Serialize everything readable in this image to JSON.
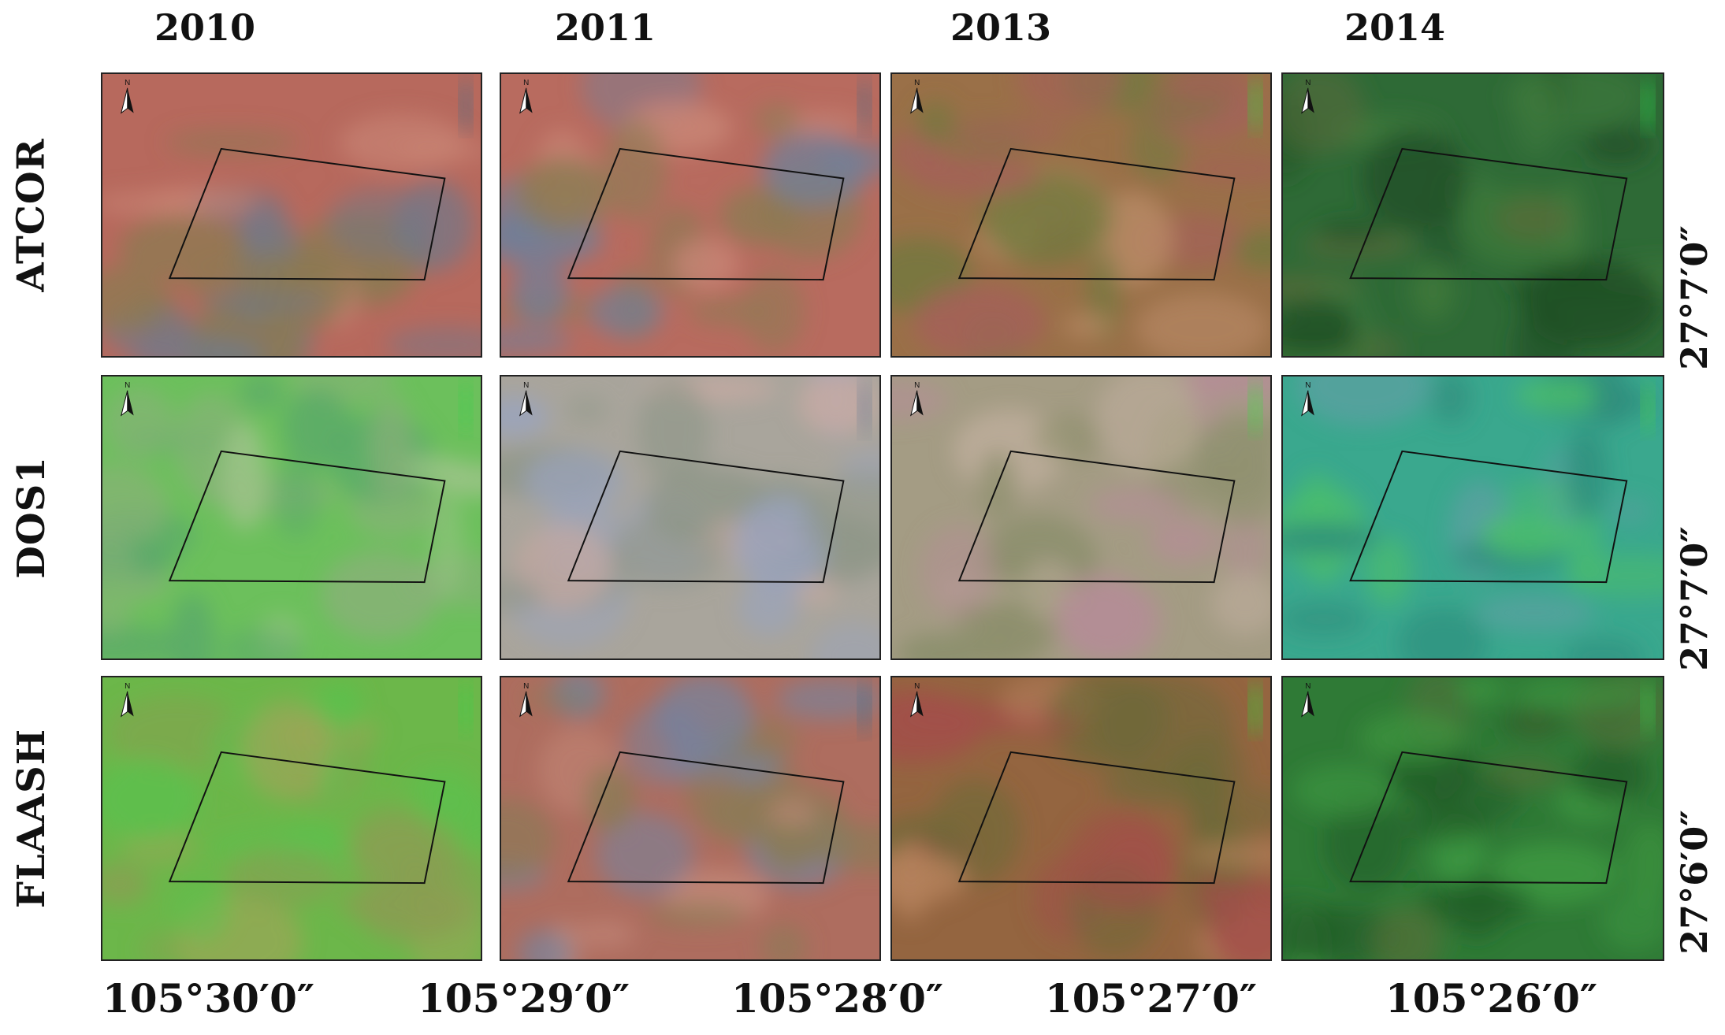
{
  "figure": {
    "years": [
      "2010",
      "2011",
      "2013",
      "2014"
    ],
    "methods": [
      "ATCOR",
      "DOS1",
      "FLAASH"
    ],
    "latitude_labels": [
      "27°7′0″",
      "27°7′0″",
      "27°6′0″"
    ],
    "longitude_labels": [
      "105°30′0″",
      "105°29′0″",
      "105°28′0″",
      "105°27′0″",
      "105°26′0″"
    ],
    "north_arrow_letter": "N",
    "north_arrow_icon": "north-arrow-icon"
  },
  "panels": [
    {
      "method": "ATCOR",
      "year": "2010",
      "palette": {
        "base": "#b7695d",
        "a": "#8c7a52",
        "b": "#6e7a8c",
        "c": "#c98676",
        "accent": "#4a6e88"
      }
    },
    {
      "method": "ATCOR",
      "year": "2011",
      "palette": {
        "base": "#b86b5f",
        "a": "#8e7b54",
        "b": "#70809a",
        "c": "#c98676",
        "accent": "#4b6c86"
      }
    },
    {
      "method": "ATCOR",
      "year": "2013",
      "palette": {
        "base": "#9a7048",
        "a": "#6f7a3e",
        "b": "#a5605a",
        "c": "#b98a66",
        "accent": "#2fdc38"
      }
    },
    {
      "method": "ATCOR",
      "year": "2014",
      "palette": {
        "base": "#2e6a36",
        "a": "#1f5026",
        "b": "#3f7b3c",
        "c": "#5a6a3a",
        "accent": "#2bd04a"
      }
    },
    {
      "method": "DOS1",
      "year": "2010",
      "palette": {
        "base": "#6cc05c",
        "a": "#8bb07a",
        "b": "#5aa86a",
        "c": "#9fc48a",
        "accent": "#3ccf4c"
      }
    },
    {
      "method": "DOS1",
      "year": "2011",
      "palette": {
        "base": "#a9a59c",
        "a": "#8e9688",
        "b": "#9aa3bd",
        "c": "#c7aaa2",
        "accent": "#627a94"
      }
    },
    {
      "method": "DOS1",
      "year": "2013",
      "palette": {
        "base": "#a49c84",
        "a": "#8c8f6c",
        "b": "#b48e96",
        "c": "#c2b0a0",
        "accent": "#37e040"
      }
    },
    {
      "method": "DOS1",
      "year": "2014",
      "palette": {
        "base": "#3aa88e",
        "a": "#2f8c7c",
        "b": "#4cbf6a",
        "c": "#5aa0a0",
        "accent": "#49d04c"
      }
    },
    {
      "method": "FLAASH",
      "year": "2010",
      "palette": {
        "base": "#6cb74a",
        "a": "#8a9e52",
        "b": "#59c24e",
        "c": "#a0a458",
        "accent": "#3ed04a"
      }
    },
    {
      "method": "FLAASH",
      "year": "2011",
      "palette": {
        "base": "#ae6d5f",
        "a": "#8a7b56",
        "b": "#7484a0",
        "c": "#c48a7a",
        "accent": "#4c6c84"
      }
    },
    {
      "method": "FLAASH",
      "year": "2013",
      "palette": {
        "base": "#946540",
        "a": "#6c6a38",
        "b": "#a24e4a",
        "c": "#b5815c",
        "accent": "#2ed83a"
      }
    },
    {
      "method": "FLAASH",
      "year": "2014",
      "palette": {
        "base": "#2f7a36",
        "a": "#225c28",
        "b": "#3f9a42",
        "c": "#55703a",
        "accent": "#2fd04c"
      }
    }
  ]
}
